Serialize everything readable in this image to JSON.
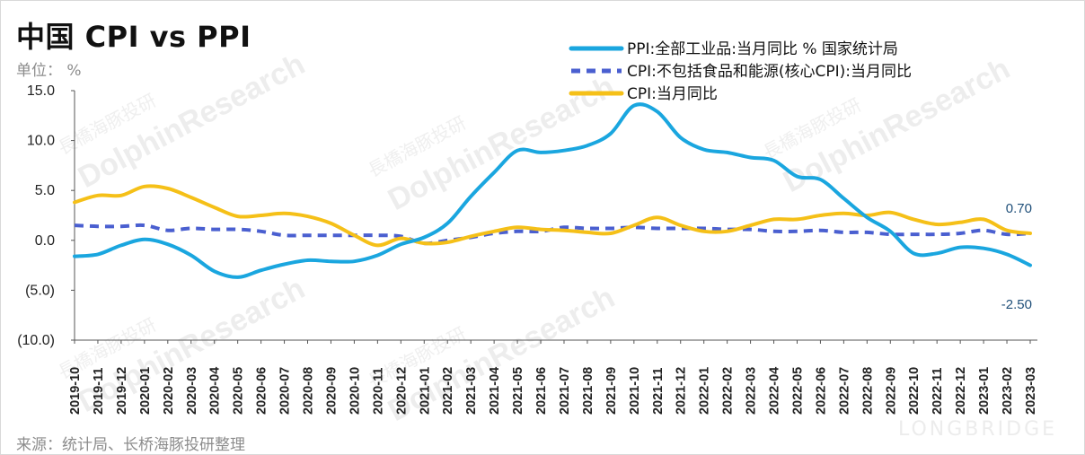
{
  "header": {
    "title": "中国 CPI vs PPI",
    "unit": "单位： %"
  },
  "footer": {
    "source": "来源：统计局、长桥海豚投研整理"
  },
  "watermark": {
    "text": "DolphinResearch",
    "text_cn": "長橋海豚投研",
    "brand": "LONGBRIDGE"
  },
  "colors": {
    "ppi": "#1aa6df",
    "core_cpi": "#4a5fd0",
    "cpi": "#f5c018",
    "axis": "#555555"
  },
  "chart_data": {
    "type": "line",
    "title": "中国 CPI vs PPI",
    "ylim": [
      -10,
      15
    ],
    "y_ticks": [
      15,
      10,
      5,
      0,
      -5,
      -10
    ],
    "y_tick_labels": [
      "15.0",
      "10.0",
      "5.0",
      "0.0",
      "(5.0)",
      "(10.0)"
    ],
    "grid": false,
    "legend_position": "top-right",
    "x": [
      "2019-10",
      "2019-11",
      "2019-12",
      "2020-01",
      "2020-02",
      "2020-03",
      "2020-04",
      "2020-05",
      "2020-06",
      "2020-07",
      "2020-08",
      "2020-09",
      "2020-10",
      "2020-11",
      "2020-12",
      "2021-01",
      "2021-02",
      "2021-03",
      "2021-04",
      "2021-05",
      "2021-06",
      "2021-07",
      "2021-08",
      "2021-09",
      "2021-10",
      "2021-11",
      "2021-12",
      "2022-01",
      "2022-02",
      "2022-03",
      "2022-04",
      "2022-05",
      "2022-06",
      "2022-07",
      "2022-08",
      "2022-09",
      "2022-10",
      "2022-11",
      "2022-12",
      "2023-01",
      "2023-02",
      "2023-03"
    ],
    "series": [
      {
        "name": "PPI:全部工业品:当月同比 % 国家统计局",
        "style": "solid",
        "color": "#1aa6df",
        "values": [
          -1.6,
          -1.4,
          -0.5,
          0.1,
          -0.4,
          -1.5,
          -3.1,
          -3.7,
          -3.0,
          -2.4,
          -2.0,
          -2.1,
          -2.1,
          -1.5,
          -0.4,
          0.3,
          1.7,
          4.4,
          6.8,
          9.0,
          8.8,
          9.0,
          9.5,
          10.7,
          13.5,
          12.9,
          10.3,
          9.1,
          8.8,
          8.3,
          8.0,
          6.4,
          6.1,
          4.2,
          2.3,
          0.9,
          -1.3,
          -1.3,
          -0.7,
          -0.8,
          -1.4,
          -2.5
        ],
        "end_label": "-2.50"
      },
      {
        "name": "CPI:不包括食品和能源(核心CPI):当月同比",
        "style": "dashed",
        "color": "#4a5fd0",
        "values": [
          1.5,
          1.4,
          1.4,
          1.5,
          1.0,
          1.2,
          1.1,
          1.1,
          0.9,
          0.5,
          0.5,
          0.5,
          0.5,
          0.5,
          0.4,
          -0.3,
          0.0,
          0.3,
          0.7,
          0.9,
          0.9,
          1.3,
          1.2,
          1.2,
          1.3,
          1.2,
          1.2,
          1.2,
          1.1,
          1.1,
          0.9,
          0.9,
          1.0,
          0.8,
          0.8,
          0.6,
          0.6,
          0.6,
          0.7,
          1.0,
          0.6,
          0.7
        ],
        "end_label": ""
      },
      {
        "name": "CPI:当月同比",
        "style": "solid",
        "color": "#f5c018",
        "values": [
          3.8,
          4.5,
          4.5,
          5.4,
          5.2,
          4.3,
          3.3,
          2.4,
          2.5,
          2.7,
          2.4,
          1.7,
          0.5,
          -0.5,
          0.2,
          -0.3,
          -0.2,
          0.4,
          0.9,
          1.3,
          1.1,
          1.0,
          0.8,
          0.7,
          1.5,
          2.3,
          1.5,
          0.9,
          0.9,
          1.5,
          2.1,
          2.1,
          2.5,
          2.7,
          2.5,
          2.8,
          2.1,
          1.6,
          1.8,
          2.1,
          1.0,
          0.7
        ],
        "end_label": "0.70"
      }
    ]
  }
}
